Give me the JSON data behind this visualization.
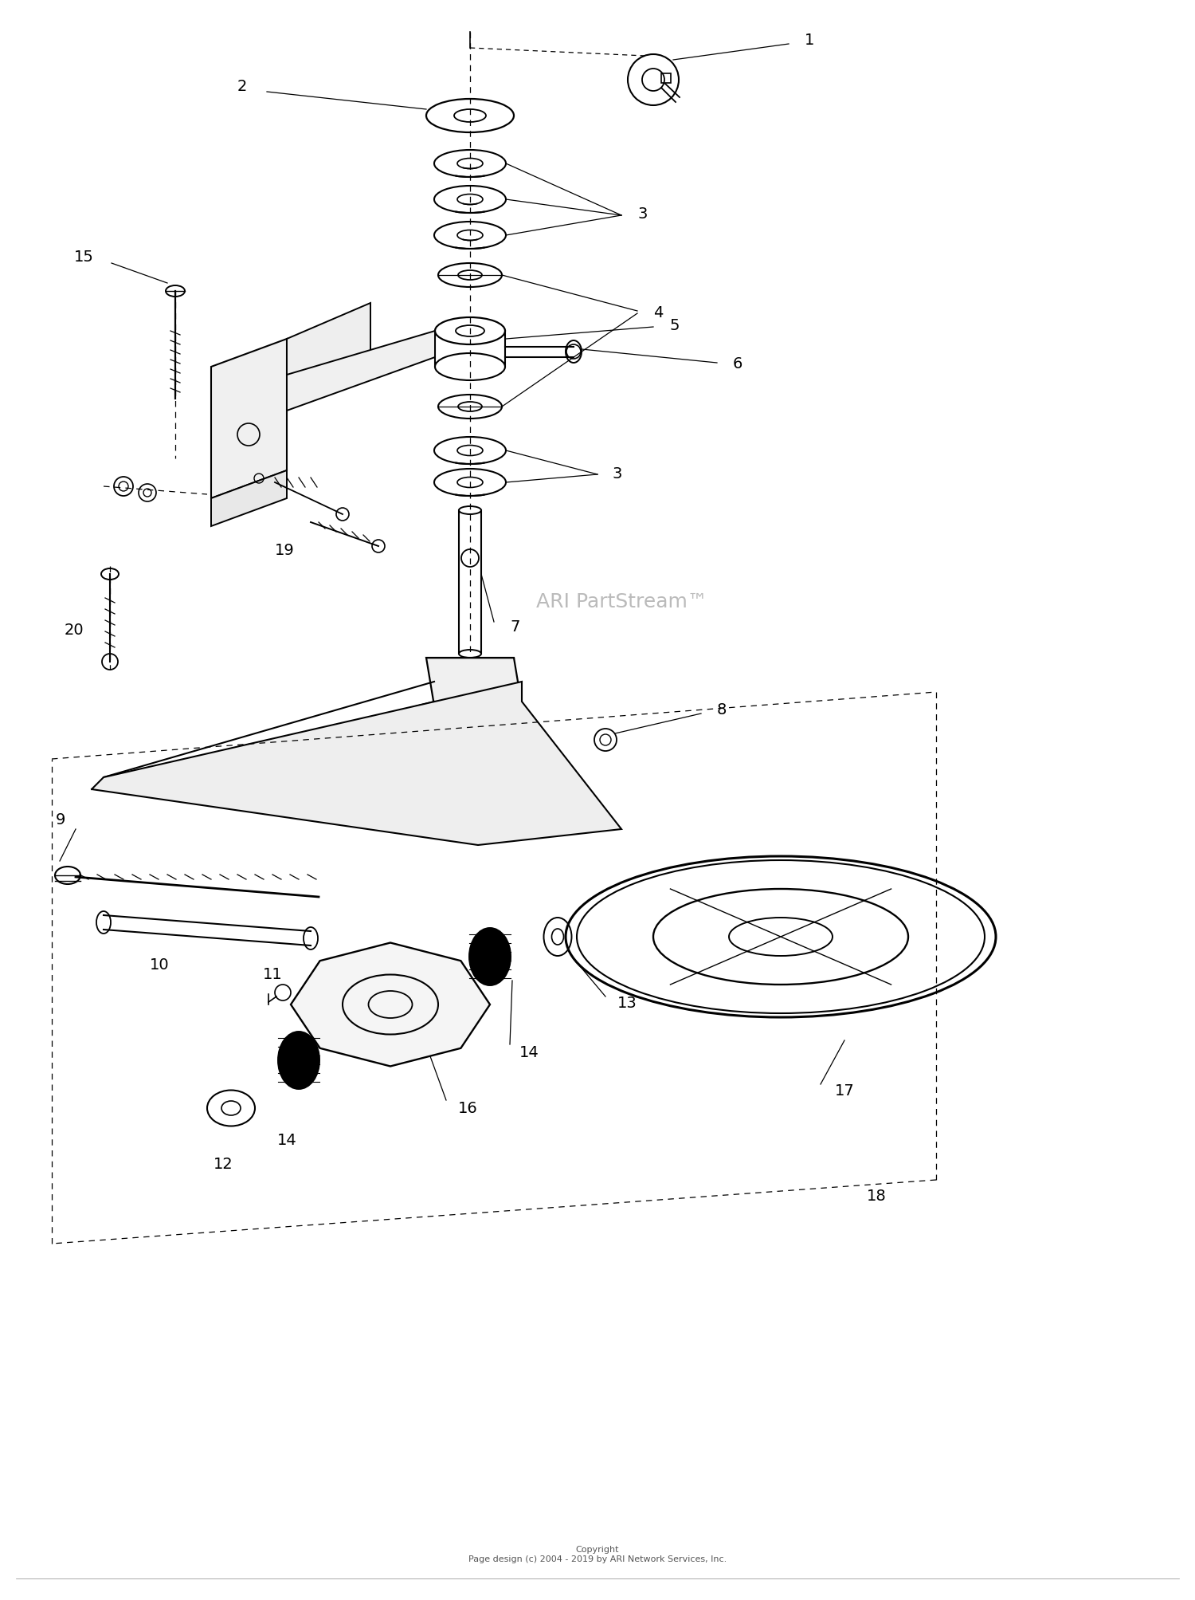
{
  "background_color": "#ffffff",
  "line_color": "#000000",
  "watermark": "ARI PartStream™",
  "copyright": "Copyright\nPage design (c) 2004 - 2019 by ARI Network Services, Inc.",
  "figsize": [
    15.0,
    20.07
  ],
  "dpi": 100
}
